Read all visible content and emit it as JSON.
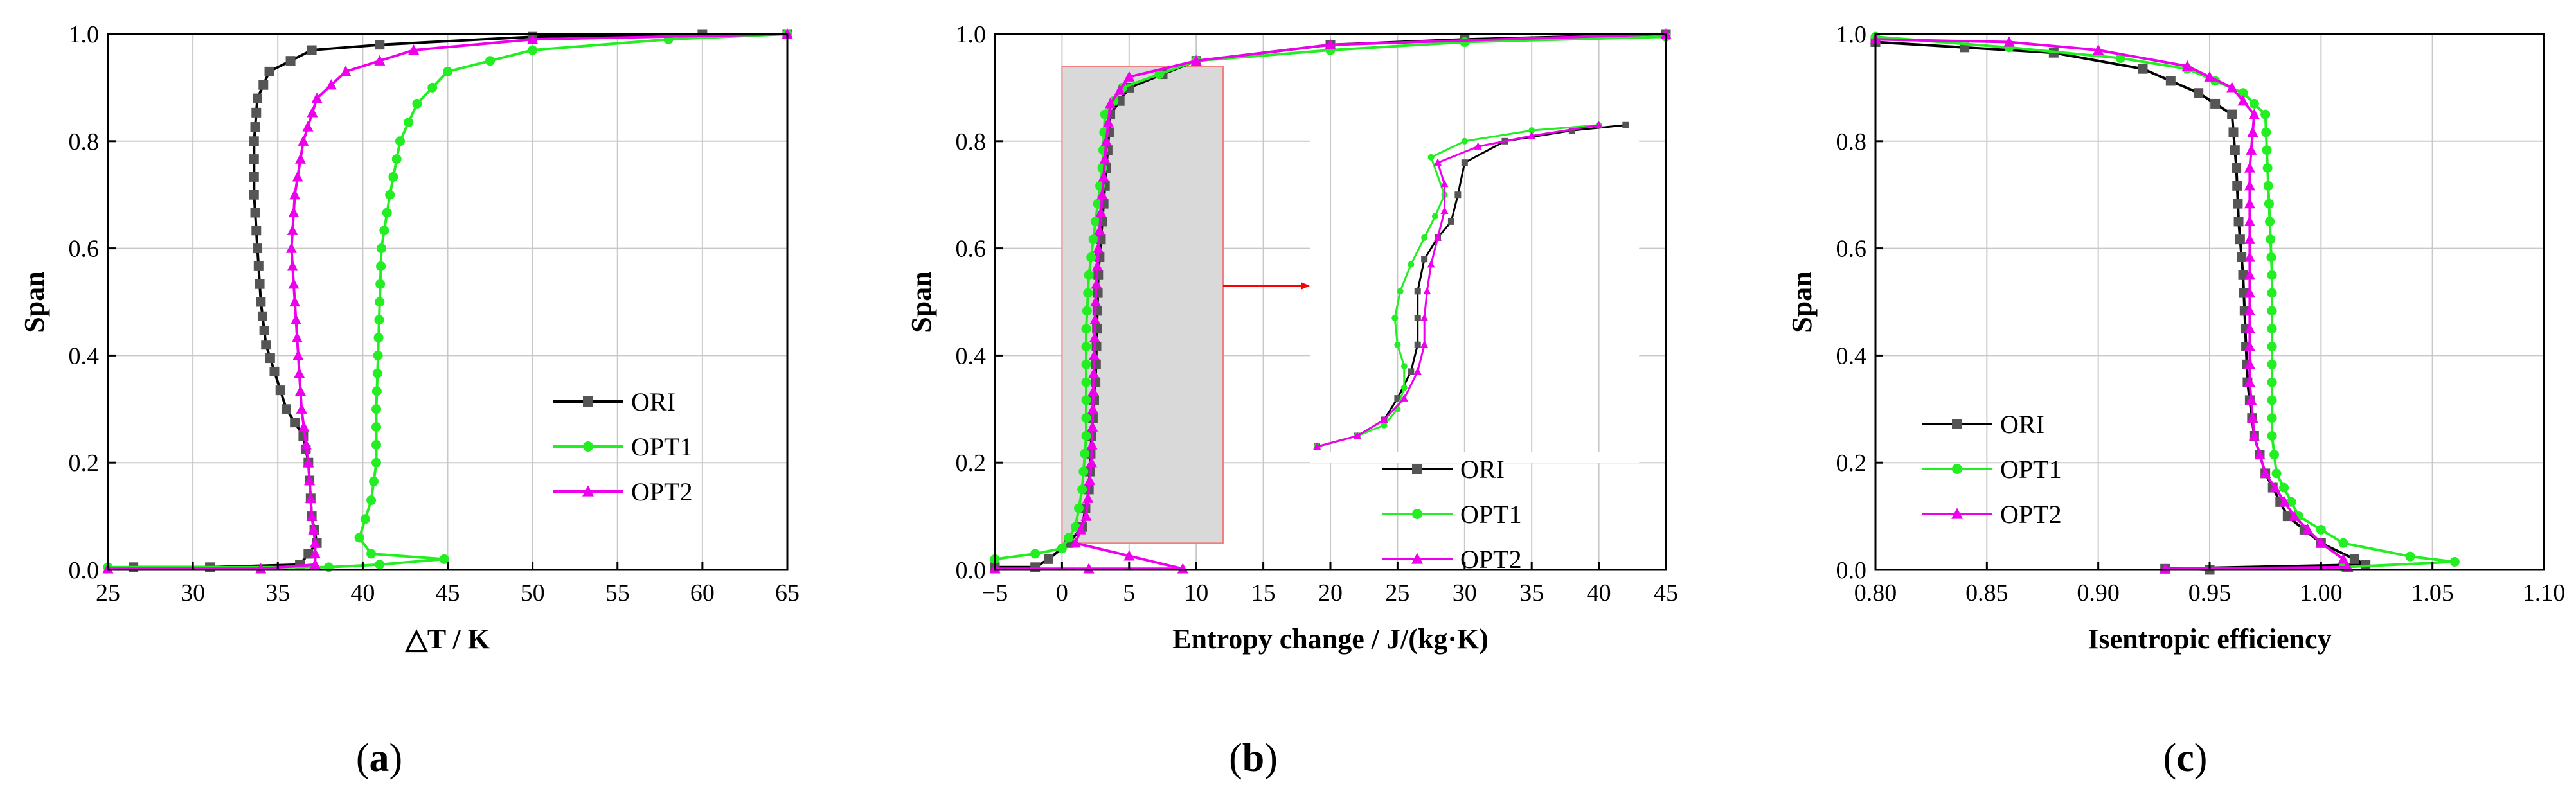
{
  "colors": {
    "ORI": "#000000",
    "OPT1": "#22ee22",
    "OPT2": "#ee00ee",
    "grid": "#c8c8c8",
    "zoom_box": "#d9d9d9",
    "zoom_edge": "#f08080",
    "arrow": "#ff0000"
  },
  "chart_data": [
    {
      "id": "a",
      "type": "line",
      "panel_label": "a",
      "xlabel": "△T / K",
      "ylabel": "Span",
      "xlim": [
        25,
        65
      ],
      "ylim": [
        0,
        1
      ],
      "xticks": [
        25,
        30,
        35,
        40,
        45,
        50,
        55,
        60,
        65
      ],
      "yticks": [
        0.0,
        0.2,
        0.4,
        0.6,
        0.8,
        1.0
      ],
      "xtick_labels": [
        "25",
        "30",
        "35",
        "40",
        "45",
        "50",
        "55",
        "60",
        "65"
      ],
      "ytick_labels": [
        "0.0",
        "0.2",
        "0.4",
        "0.6",
        "0.8",
        "1.0"
      ],
      "legend": {
        "position": "center-right",
        "entries": [
          "ORI",
          "OPT1",
          "OPT2"
        ]
      },
      "series": [
        {
          "name": "ORI",
          "marker": "square",
          "points": [
            [
              26.5,
              0.005
            ],
            [
              31,
              0.005
            ],
            [
              36.3,
              0.01
            ],
            [
              37.3,
              0.05
            ],
            [
              37.0,
              0.1
            ],
            [
              36.8,
              0.2
            ],
            [
              36.5,
              0.25
            ],
            [
              35.5,
              0.3
            ],
            [
              34.8,
              0.37
            ],
            [
              34.3,
              0.42
            ],
            [
              34.0,
              0.5
            ],
            [
              33.8,
              0.6
            ],
            [
              33.6,
              0.7
            ],
            [
              33.6,
              0.8
            ],
            [
              33.8,
              0.88
            ],
            [
              34.5,
              0.93
            ],
            [
              37,
              0.97
            ],
            [
              41,
              0.98
            ],
            [
              50,
              0.995
            ],
            [
              60,
              1.0
            ],
            [
              65,
              1.0
            ]
          ]
        },
        {
          "name": "OPT1",
          "marker": "circle",
          "points": [
            [
              25,
              0.005
            ],
            [
              38,
              0.005
            ],
            [
              41,
              0.01
            ],
            [
              44.8,
              0.02
            ],
            [
              40.5,
              0.03
            ],
            [
              39.8,
              0.06
            ],
            [
              40.5,
              0.13
            ],
            [
              40.8,
              0.2
            ],
            [
              40.8,
              0.3
            ],
            [
              40.9,
              0.4
            ],
            [
              41.0,
              0.5
            ],
            [
              41.1,
              0.6
            ],
            [
              41.6,
              0.7
            ],
            [
              42.2,
              0.8
            ],
            [
              43.2,
              0.87
            ],
            [
              45,
              0.93
            ],
            [
              50,
              0.97
            ],
            [
              58,
              0.99
            ],
            [
              65,
              1.0
            ]
          ]
        },
        {
          "name": "OPT2",
          "marker": "triangle",
          "points": [
            [
              25,
              0.002
            ],
            [
              34,
              0.002
            ],
            [
              37.2,
              0.01
            ],
            [
              37.2,
              0.05
            ],
            [
              37.0,
              0.1
            ],
            [
              36.8,
              0.2
            ],
            [
              36.4,
              0.3
            ],
            [
              36.2,
              0.4
            ],
            [
              36.0,
              0.5
            ],
            [
              35.8,
              0.6
            ],
            [
              36.0,
              0.7
            ],
            [
              36.5,
              0.8
            ],
            [
              37.3,
              0.88
            ],
            [
              39,
              0.93
            ],
            [
              43,
              0.97
            ],
            [
              50,
              0.99
            ],
            [
              65,
              1.0
            ]
          ]
        }
      ]
    },
    {
      "id": "b",
      "type": "line",
      "panel_label": "b",
      "xlabel": "Entropy change / J/(kg·K)",
      "ylabel": "Span",
      "xlim": [
        -5,
        45
      ],
      "ylim": [
        0,
        1
      ],
      "xticks": [
        -5,
        0,
        5,
        10,
        15,
        20,
        25,
        30,
        35,
        40,
        45
      ],
      "yticks": [
        0.0,
        0.2,
        0.4,
        0.6,
        0.8,
        1.0
      ],
      "xtick_labels": [
        "−5",
        "0",
        "5",
        "10",
        "15",
        "20",
        "25",
        "30",
        "35",
        "40",
        "45"
      ],
      "ytick_labels": [
        "0.0",
        "0.2",
        "0.4",
        "0.6",
        "0.8",
        "1.0"
      ],
      "legend": {
        "position": "bottom-right",
        "entries": [
          "ORI",
          "OPT1",
          "OPT2"
        ]
      },
      "zoom_region": {
        "x": [
          0,
          12
        ],
        "y": [
          0.05,
          0.94
        ]
      },
      "series": [
        {
          "name": "ORI",
          "marker": "square",
          "points": [
            [
              -5,
              0.005
            ],
            [
              -2,
              0.005
            ],
            [
              -1,
              0.02
            ],
            [
              0.5,
              0.05
            ],
            [
              1.5,
              0.08
            ],
            [
              2.0,
              0.15
            ],
            [
              2.2,
              0.25
            ],
            [
              2.5,
              0.35
            ],
            [
              2.6,
              0.45
            ],
            [
              2.7,
              0.55
            ],
            [
              3.0,
              0.65
            ],
            [
              3.3,
              0.75
            ],
            [
              3.6,
              0.85
            ],
            [
              5,
              0.9
            ],
            [
              10,
              0.95
            ],
            [
              20,
              0.98
            ],
            [
              30,
              0.99
            ],
            [
              45,
              1.0
            ]
          ]
        },
        {
          "name": "OPT1",
          "marker": "circle",
          "points": [
            [
              -5,
              0.02
            ],
            [
              -2,
              0.03
            ],
            [
              0,
              0.04
            ],
            [
              1.0,
              0.08
            ],
            [
              1.5,
              0.15
            ],
            [
              1.8,
              0.25
            ],
            [
              1.8,
              0.35
            ],
            [
              1.8,
              0.45
            ],
            [
              2.0,
              0.55
            ],
            [
              2.5,
              0.65
            ],
            [
              3.0,
              0.75
            ],
            [
              3.2,
              0.85
            ],
            [
              4.5,
              0.9
            ],
            [
              10,
              0.95
            ],
            [
              20,
              0.97
            ],
            [
              30,
              0.985
            ],
            [
              45,
              0.995
            ]
          ]
        },
        {
          "name": "OPT2",
          "marker": "triangle",
          "points": [
            [
              -5,
              0.002
            ],
            [
              2,
              0.002
            ],
            [
              9,
              0.002
            ],
            [
              1.0,
              0.05
            ],
            [
              1.8,
              0.1
            ],
            [
              2.2,
              0.2
            ],
            [
              2.3,
              0.3
            ],
            [
              2.4,
              0.4
            ],
            [
              2.5,
              0.5
            ],
            [
              2.7,
              0.6
            ],
            [
              3.0,
              0.7
            ],
            [
              3.3,
              0.8
            ],
            [
              3.6,
              0.87
            ],
            [
              5,
              0.92
            ],
            [
              10,
              0.95
            ],
            [
              20,
              0.98
            ],
            [
              45,
              1.0
            ]
          ]
        }
      ],
      "inset": {
        "x": [
          18.5,
          42
        ],
        "y": [
          0.23,
          0.83
        ],
        "series": [
          {
            "name": "ORI",
            "points": [
              [
                19,
                0.23
              ],
              [
                22,
                0.25
              ],
              [
                24,
                0.28
              ],
              [
                25,
                0.32
              ],
              [
                26,
                0.37
              ],
              [
                26.5,
                0.42
              ],
              [
                26.5,
                0.47
              ],
              [
                26.5,
                0.52
              ],
              [
                27,
                0.58
              ],
              [
                28,
                0.62
              ],
              [
                29,
                0.65
              ],
              [
                29.5,
                0.7
              ],
              [
                30,
                0.76
              ],
              [
                33,
                0.8
              ],
              [
                38,
                0.82
              ],
              [
                42,
                0.83
              ]
            ]
          },
          {
            "name": "OPT1",
            "points": [
              [
                19,
                0.23
              ],
              [
                22,
                0.25
              ],
              [
                24,
                0.27
              ],
              [
                25,
                0.3
              ],
              [
                25.5,
                0.34
              ],
              [
                25.5,
                0.38
              ],
              [
                25,
                0.42
              ],
              [
                24.8,
                0.47
              ],
              [
                25.2,
                0.52
              ],
              [
                26,
                0.57
              ],
              [
                27,
                0.62
              ],
              [
                27.8,
                0.66
              ],
              [
                28.5,
                0.7
              ],
              [
                27.5,
                0.77
              ],
              [
                30,
                0.8
              ],
              [
                35,
                0.82
              ],
              [
                40,
                0.83
              ]
            ]
          },
          {
            "name": "OPT2",
            "points": [
              [
                19,
                0.23
              ],
              [
                22,
                0.25
              ],
              [
                24,
                0.28
              ],
              [
                25.5,
                0.32
              ],
              [
                26.5,
                0.37
              ],
              [
                27,
                0.42
              ],
              [
                27,
                0.47
              ],
              [
                27.2,
                0.52
              ],
              [
                27.5,
                0.57
              ],
              [
                28,
                0.62
              ],
              [
                28.5,
                0.67
              ],
              [
                28.5,
                0.72
              ],
              [
                28,
                0.76
              ],
              [
                31,
                0.79
              ],
              [
                35,
                0.81
              ],
              [
                40,
                0.83
              ]
            ]
          }
        ]
      }
    },
    {
      "id": "c",
      "type": "line",
      "panel_label": "c",
      "xlabel": "Isentropic efficiency",
      "ylabel": "Span",
      "xlim": [
        0.8,
        1.1
      ],
      "ylim": [
        0,
        1
      ],
      "xticks": [
        0.8,
        0.85,
        0.9,
        0.95,
        1.0,
        1.05,
        1.1
      ],
      "yticks": [
        0.0,
        0.2,
        0.4,
        0.6,
        0.8,
        1.0
      ],
      "xtick_labels": [
        "0.80",
        "0.85",
        "0.90",
        "0.95",
        "1.00",
        "1.05",
        "1.10"
      ],
      "ytick_labels": [
        "0.0",
        "0.2",
        "0.4",
        "0.6",
        "0.8",
        "1.0"
      ],
      "legend": {
        "position": "center-left",
        "entries": [
          "ORI",
          "OPT1",
          "OPT2"
        ]
      },
      "series": [
        {
          "name": "ORI",
          "marker": "square",
          "points": [
            [
              0.8,
              0.985
            ],
            [
              0.84,
              0.975
            ],
            [
              0.88,
              0.965
            ],
            [
              0.92,
              0.935
            ],
            [
              0.945,
              0.89
            ],
            [
              0.96,
              0.85
            ],
            [
              0.962,
              0.75
            ],
            [
              0.963,
              0.65
            ],
            [
              0.965,
              0.55
            ],
            [
              0.966,
              0.45
            ],
            [
              0.967,
              0.35
            ],
            [
              0.97,
              0.25
            ],
            [
              0.975,
              0.18
            ],
            [
              0.985,
              0.1
            ],
            [
              1.0,
              0.05
            ],
            [
              1.015,
              0.02
            ],
            [
              1.02,
              0.01
            ],
            [
              0.93,
              0.002
            ],
            [
              0.95,
              0.0
            ]
          ]
        },
        {
          "name": "OPT1",
          "marker": "circle",
          "points": [
            [
              0.8,
              0.995
            ],
            [
              0.86,
              0.975
            ],
            [
              0.91,
              0.955
            ],
            [
              0.94,
              0.935
            ],
            [
              0.965,
              0.89
            ],
            [
              0.975,
              0.85
            ],
            [
              0.976,
              0.75
            ],
            [
              0.977,
              0.65
            ],
            [
              0.978,
              0.55
            ],
            [
              0.978,
              0.45
            ],
            [
              0.978,
              0.35
            ],
            [
              0.978,
              0.25
            ],
            [
              0.98,
              0.18
            ],
            [
              0.99,
              0.1
            ],
            [
              1.01,
              0.05
            ],
            [
              1.04,
              0.025
            ],
            [
              1.06,
              0.015
            ],
            [
              1.01,
              0.005
            ]
          ]
        },
        {
          "name": "OPT2",
          "marker": "triangle",
          "points": [
            [
              0.8,
              0.99
            ],
            [
              0.86,
              0.985
            ],
            [
              0.9,
              0.97
            ],
            [
              0.94,
              0.94
            ],
            [
              0.96,
              0.9
            ],
            [
              0.97,
              0.85
            ],
            [
              0.968,
              0.75
            ],
            [
              0.968,
              0.65
            ],
            [
              0.968,
              0.55
            ],
            [
              0.968,
              0.45
            ],
            [
              0.968,
              0.35
            ],
            [
              0.97,
              0.25
            ],
            [
              0.975,
              0.18
            ],
            [
              0.988,
              0.1
            ],
            [
              1.0,
              0.05
            ],
            [
              1.01,
              0.02
            ],
            [
              1.012,
              0.005
            ],
            [
              0.93,
              0.002
            ]
          ]
        }
      ]
    }
  ]
}
